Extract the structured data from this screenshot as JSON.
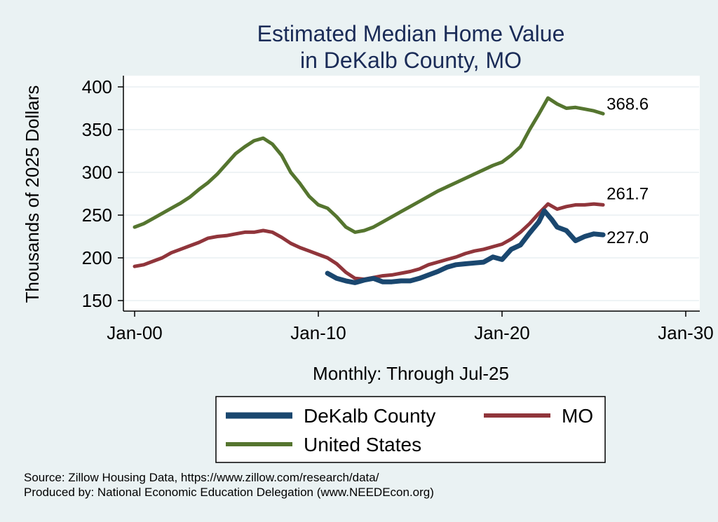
{
  "colors": {
    "background": "#eaf2f3",
    "plot_background": "#ffffff",
    "title": "#1a2b57",
    "dekalb": "#1a476f",
    "mo": "#90353b",
    "us": "#55752f",
    "grid": "#e8eff2"
  },
  "footnotes": {
    "source": "Source: Zillow Housing Data, https://www.zillow.com/research/data/",
    "produced_by": "Produced by: National Economic Education Delegation (www.NEEDEcon.org)"
  },
  "chart_data": {
    "type": "line",
    "title": [
      "Estimated Median Home Value",
      "in DeKalb County, MO"
    ],
    "xlabel": "Monthly: Through Jul-25",
    "ylabel": "Thousands of 2025 Dollars",
    "xlim": [
      2000,
      2030
    ],
    "ylim": [
      150,
      400
    ],
    "x_ticks": [
      2000,
      2010,
      2020,
      2030
    ],
    "x_tick_labels": [
      "Jan-00",
      "Jan-10",
      "Jan-20",
      "Jan-30"
    ],
    "y_ticks": [
      150,
      200,
      250,
      300,
      350,
      400
    ],
    "y_tick_labels": [
      "150",
      "200",
      "250",
      "300",
      "350",
      "400"
    ],
    "grid": true,
    "legend_position": "bottom",
    "series": [
      {
        "name": "DeKalb County",
        "key": "dekalb",
        "end_label": "227.0",
        "x": [
          2010.5,
          2011.0,
          2011.5,
          2012.0,
          2012.5,
          2013.0,
          2013.5,
          2014.0,
          2014.5,
          2015.0,
          2015.5,
          2016.0,
          2016.5,
          2017.0,
          2017.5,
          2018.0,
          2018.5,
          2019.0,
          2019.5,
          2020.0,
          2020.5,
          2021.0,
          2021.5,
          2022.0,
          2022.3,
          2022.7,
          2023.0,
          2023.5,
          2024.0,
          2024.5,
          2025.0,
          2025.5
        ],
        "y": [
          182,
          176,
          173,
          171,
          174,
          176,
          172,
          172,
          173,
          173,
          176,
          180,
          184,
          189,
          192,
          193,
          194,
          195,
          201,
          198,
          210,
          215,
          229,
          242,
          255,
          245,
          236,
          232,
          220,
          225,
          228,
          227
        ]
      },
      {
        "name": "MO",
        "key": "mo",
        "end_label": "261.7",
        "x": [
          2000.0,
          2000.5,
          2001.0,
          2001.5,
          2002.0,
          2002.5,
          2003.0,
          2003.5,
          2004.0,
          2004.5,
          2005.0,
          2005.5,
          2006.0,
          2006.5,
          2007.0,
          2007.5,
          2008.0,
          2008.5,
          2009.0,
          2009.5,
          2010.0,
          2010.5,
          2011.0,
          2011.5,
          2012.0,
          2012.5,
          2013.0,
          2013.5,
          2014.0,
          2014.5,
          2015.0,
          2015.5,
          2016.0,
          2016.5,
          2017.0,
          2017.5,
          2018.0,
          2018.5,
          2019.0,
          2019.5,
          2020.0,
          2020.5,
          2021.0,
          2021.5,
          2022.0,
          2022.5,
          2023.0,
          2023.5,
          2024.0,
          2024.5,
          2025.0,
          2025.5
        ],
        "y": [
          190,
          192,
          196,
          200,
          206,
          210,
          214,
          218,
          223,
          225,
          226,
          228,
          230,
          230,
          232,
          230,
          224,
          217,
          212,
          208,
          204,
          200,
          193,
          183,
          176,
          175,
          177,
          179,
          180,
          182,
          184,
          187,
          192,
          195,
          198,
          201,
          205,
          208,
          210,
          213,
          216,
          222,
          230,
          240,
          252,
          263,
          257,
          260,
          262,
          262,
          263,
          262
        ]
      },
      {
        "name": "United States",
        "key": "us",
        "end_label": "368.6",
        "x": [
          2000.0,
          2000.5,
          2001.0,
          2001.5,
          2002.0,
          2002.5,
          2003.0,
          2003.5,
          2004.0,
          2004.5,
          2005.0,
          2005.5,
          2006.0,
          2006.5,
          2007.0,
          2007.5,
          2008.0,
          2008.5,
          2009.0,
          2009.5,
          2010.0,
          2010.5,
          2011.0,
          2011.5,
          2012.0,
          2012.5,
          2013.0,
          2013.5,
          2014.0,
          2014.5,
          2015.0,
          2015.5,
          2016.0,
          2016.5,
          2017.0,
          2017.5,
          2018.0,
          2018.5,
          2019.0,
          2019.5,
          2020.0,
          2020.5,
          2021.0,
          2021.5,
          2022.0,
          2022.5,
          2023.0,
          2023.5,
          2024.0,
          2024.5,
          2025.0,
          2025.5
        ],
        "y": [
          236,
          240,
          246,
          252,
          258,
          264,
          271,
          280,
          288,
          298,
          310,
          322,
          330,
          337,
          340,
          333,
          320,
          300,
          287,
          272,
          262,
          258,
          248,
          236,
          230,
          232,
          236,
          242,
          248,
          254,
          260,
          266,
          272,
          278,
          283,
          288,
          293,
          298,
          303,
          308,
          312,
          320,
          330,
          350,
          368,
          387,
          380,
          375,
          376,
          374,
          372,
          368.6
        ]
      }
    ],
    "legend_rows": [
      [
        "dekalb",
        "mo"
      ],
      [
        "us"
      ]
    ]
  }
}
